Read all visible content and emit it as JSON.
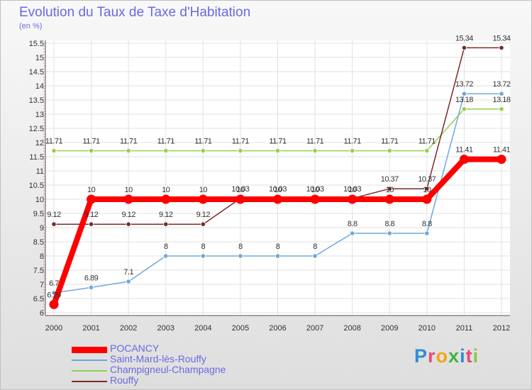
{
  "title": "Evolution du Taux de Taxe d'Habitation",
  "unit": "(en %)",
  "logo": {
    "letters": [
      "P",
      "r",
      "o",
      "x",
      "i",
      "t",
      "i"
    ],
    "colors": [
      "#2e8fd4",
      "#e84a7a",
      "#f3a614",
      "#3cb440",
      "#2e8fd4",
      "#e84a7a",
      "#8bc34a"
    ]
  },
  "chart_data": {
    "type": "line",
    "x": [
      "2000",
      "2001",
      "2002",
      "2003",
      "2004",
      "2005",
      "2006",
      "2007",
      "2008",
      "2009",
      "2010",
      "2011",
      "2012"
    ],
    "ylim": [
      6,
      15.5
    ],
    "yticks": [
      "6",
      "6.5",
      "7",
      "7.5",
      "8",
      "8.5",
      "9",
      "9.5",
      "10",
      "10.5",
      "11",
      "11.5",
      "12",
      "12.5",
      "13",
      "13.5",
      "14",
      "14.5",
      "15",
      "15.5"
    ],
    "grid": true,
    "legend_position": "bottom-left",
    "series": [
      {
        "name": "POCANCY",
        "color": "#ff0000",
        "values": [
          6.29,
          10,
          10,
          10,
          10,
          10,
          10,
          10,
          10,
          10,
          10,
          11.41,
          11.41
        ],
        "labels": [
          "6.29",
          "10",
          "10",
          "10",
          "10",
          "10",
          "10",
          "10",
          "10",
          "10",
          "10",
          "11.41",
          "11.41"
        ]
      },
      {
        "name": "Saint-Mard-lès-Rouffy",
        "color": "#6fa8dc",
        "values": [
          6.7,
          6.89,
          7.1,
          8,
          8,
          8,
          8,
          8,
          8.8,
          8.8,
          8.8,
          13.72,
          13.72
        ],
        "labels": [
          "6.7",
          "6.89",
          "7.1",
          "8",
          "8",
          "8",
          "8",
          "8",
          "8.8",
          "8.8",
          "8.8",
          "13.72",
          "13.72"
        ]
      },
      {
        "name": "Champigneul-Champagne",
        "color": "#93d150",
        "values": [
          11.71,
          11.71,
          11.71,
          11.71,
          11.71,
          11.71,
          11.71,
          11.71,
          11.71,
          11.71,
          11.71,
          13.18,
          13.18
        ],
        "labels": [
          "11.71",
          "11.71",
          "11.71",
          "11.71",
          "11.71",
          "11.71",
          "11.71",
          "11.71",
          "11.71",
          "11.71",
          "11.71",
          "13.18",
          "13.18"
        ]
      },
      {
        "name": "Rouffy",
        "color": "#7b2a2a",
        "values": [
          9.12,
          9.12,
          9.12,
          9.12,
          9.12,
          10.03,
          10.03,
          10.03,
          10.03,
          10.37,
          10.37,
          15.34,
          15.34
        ],
        "labels": [
          "9.12",
          "9.12",
          "9.12",
          "9.12",
          "9.12",
          "10.03",
          "10.03",
          "10.03",
          "10.03",
          "10.37",
          "10.37",
          "15.34",
          "15.34"
        ]
      }
    ]
  }
}
